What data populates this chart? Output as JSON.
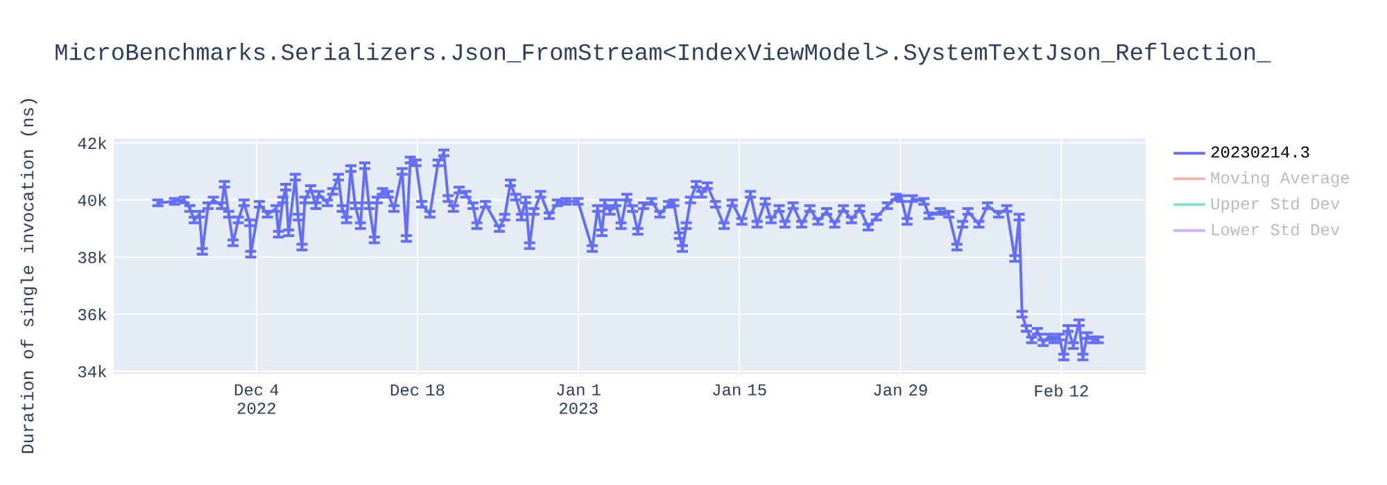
{
  "chart_data": {
    "type": "line",
    "title": "MicroBenchmarks.Serializers.Json_FromStream<IndexViewModel>.SystemTextJson_Reflection_",
    "ylabel": "Duration of single invocation (ns)",
    "xlim": [
      "2022-11-21T14:00",
      "2023-02-19T08:00"
    ],
    "xticks": [
      {
        "value": "2022-12-04",
        "label": "Dec 4 2022"
      },
      {
        "value": "2022-12-18",
        "label": "Dec 18"
      },
      {
        "value": "2023-01-01",
        "label": "Jan 1 2023"
      },
      {
        "value": "2023-01-15",
        "label": "Jan 15"
      },
      {
        "value": "2023-01-29",
        "label": "Jan 29"
      },
      {
        "value": "2023-02-12",
        "label": "Feb 12"
      }
    ],
    "ylim": [
      33900,
      42150
    ],
    "yticks": [
      {
        "value": 34000,
        "label": "34k"
      },
      {
        "value": 36000,
        "label": "36k"
      },
      {
        "value": 38000,
        "label": "38k"
      },
      {
        "value": 40000,
        "label": "40k"
      },
      {
        "value": 42000,
        "label": "42k"
      }
    ],
    "grid": true,
    "legend": "top right",
    "marker": "none",
    "line_style": "solid",
    "series": [
      {
        "name": "20230214.3",
        "color": "#636efa",
        "x": [
          "2022-11-25T10:00",
          "2022-11-26T21:00",
          "2022-11-27T17:00",
          "2022-11-28T05:00",
          "2022-11-28T14:00",
          "2022-11-29T01:00",
          "2022-11-29T07:00",
          "2022-11-29T19:00",
          "2022-11-30T06:00",
          "2022-11-30T23:00",
          "2022-12-01T05:00",
          "2022-12-01T14:00",
          "2022-12-01T23:00",
          "2022-12-02T10:00",
          "2022-12-02T22:00",
          "2022-12-03T10:00",
          "2022-12-03T12:00",
          "2022-12-04T06:00",
          "2022-12-04T23:00",
          "2022-12-05T17:00",
          "2022-12-05T22:00",
          "2022-12-06T07:00",
          "2022-12-06T13:00",
          "2022-12-06T19:00",
          "2022-12-07T09:00",
          "2022-12-07T15:00",
          "2022-12-07T23:00",
          "2022-12-08T05:00",
          "2022-12-08T17:00",
          "2022-12-09T04:00",
          "2022-12-09T10:00",
          "2022-12-10T04:00",
          "2022-12-10T15:00",
          "2022-12-11T03:00",
          "2022-12-11T11:00",
          "2022-12-11T20:00",
          "2022-12-12T05:00",
          "2022-12-12T14:00",
          "2022-12-13T01:00",
          "2022-12-13T10:00",
          "2022-12-13T19:00",
          "2022-12-14T06:00",
          "2022-12-14T12:00",
          "2022-12-14T23:00",
          "2022-12-15T11:00",
          "2022-12-15T23:00",
          "2022-12-16T16:00",
          "2022-12-17T01:00",
          "2022-12-17T09:00",
          "2022-12-17T21:00",
          "2022-12-18T09:00",
          "2022-12-19T02:00",
          "2022-12-19T19:00",
          "2022-12-20T07:00",
          "2022-12-20T16:00",
          "2022-12-21T03:00",
          "2022-12-21T15:00",
          "2022-12-22T05:00",
          "2022-12-22T20:00",
          "2022-12-23T04:00",
          "2022-12-23T22:00",
          "2022-12-25T03:00",
          "2022-12-25T14:00",
          "2022-12-26T02:00",
          "2022-12-26T13:00",
          "2022-12-27T01:00",
          "2022-12-27T10:00",
          "2022-12-27T18:00",
          "2022-12-28T03:00",
          "2022-12-28T17:00",
          "2022-12-29T11:00",
          "2022-12-30T04:00",
          "2022-12-30T22:00",
          "2022-12-31T23:00",
          "2023-01-02T05:00",
          "2023-01-02T16:00",
          "2023-01-03T01:00",
          "2023-01-03T07:00",
          "2023-01-03T18:00",
          "2023-01-04T06:00",
          "2023-01-04T17:00",
          "2023-01-05T05:00",
          "2023-01-05T17:00",
          "2023-01-06T04:00",
          "2023-01-06T16:00",
          "2023-01-07T09:00",
          "2023-01-08T02:00",
          "2023-01-08T20:00",
          "2023-01-09T07:00",
          "2023-01-09T19:00",
          "2023-01-10T01:00",
          "2023-01-10T09:00",
          "2023-01-10T18:00",
          "2023-01-11T06:00",
          "2023-01-11T17:00",
          "2023-01-12T05:00",
          "2023-01-12T22:00",
          "2023-01-13T16:00",
          "2023-01-14T09:00",
          "2023-01-15T05:00",
          "2023-01-15T23:00",
          "2023-01-16T13:00",
          "2023-01-17T06:00",
          "2023-01-17T18:00",
          "2023-01-18T11:00",
          "2023-01-18T23:00",
          "2023-01-19T16:00",
          "2023-01-20T10:00",
          "2023-01-21T03:00",
          "2023-01-21T20:00",
          "2023-01-22T14:00",
          "2023-01-23T07:00",
          "2023-01-24T01:00",
          "2023-01-24T18:00",
          "2023-01-25T11:00",
          "2023-01-26T05:00",
          "2023-01-26T22:00",
          "2023-01-27T21:00",
          "2023-01-28T15:00",
          "2023-01-29T02:00",
          "2023-01-29T14:00",
          "2023-01-30T01:00",
          "2023-01-31T01:00",
          "2023-01-31T12:00",
          "2023-02-01T11:00",
          "2023-02-02T05:00",
          "2023-02-02T22:00",
          "2023-02-03T10:00",
          "2023-02-03T21:00",
          "2023-02-04T20:00",
          "2023-02-05T14:00",
          "2023-02-06T13:00",
          "2023-02-07T06:00",
          "2023-02-07T23:00",
          "2023-02-08T08:00",
          "2023-02-08T14:00",
          "2023-02-08T23:00",
          "2023-02-09T10:00",
          "2023-02-09T22:00",
          "2023-02-10T10:00",
          "2023-02-10T21:00",
          "2023-02-11T09:00",
          "2023-02-11T20:00",
          "2023-02-12T05:00",
          "2023-02-12T14:00",
          "2023-02-13T01:00",
          "2023-02-13T13:00",
          "2023-02-13T21:00",
          "2023-02-14T06:00",
          "2023-02-14T18:00",
          "2023-02-15T05:00"
        ],
        "values": [
          39900,
          39950,
          40000,
          39700,
          39300,
          39500,
          38200,
          39800,
          40000,
          39800,
          40550,
          39500,
          38500,
          39300,
          39900,
          39200,
          38100,
          39850,
          39500,
          39700,
          38800,
          40000,
          40450,
          38850,
          40800,
          39400,
          38350,
          40000,
          40400,
          39800,
          40200,
          39900,
          40300,
          40800,
          39700,
          39300,
          41100,
          39800,
          39100,
          41200,
          39800,
          38600,
          40000,
          40300,
          40200,
          39700,
          41000,
          38650,
          41400,
          41300,
          39850,
          39500,
          41300,
          41650,
          40050,
          39700,
          40350,
          40200,
          39800,
          39100,
          39850,
          39000,
          39400,
          40600,
          40100,
          39400,
          40000,
          38400,
          39600,
          40200,
          39450,
          39900,
          39950,
          39950,
          38300,
          39700,
          38850,
          39900,
          39600,
          39900,
          39100,
          40100,
          39700,
          38900,
          39800,
          39950,
          39500,
          39850,
          39900,
          38750,
          38300,
          39100,
          40000,
          40550,
          40200,
          40500,
          39850,
          39100,
          39900,
          39250,
          40200,
          39150,
          39950,
          39300,
          39700,
          39150,
          39800,
          39150,
          39700,
          39250,
          39600,
          39150,
          39700,
          39300,
          39700,
          39050,
          39400,
          39800,
          40100,
          40050,
          39250,
          40050,
          39950,
          39450,
          39600,
          39500,
          38350,
          39150,
          39600,
          39150,
          39800,
          39500,
          39700,
          37950,
          39400,
          36000,
          35500,
          35100,
          35400,
          35000,
          35200,
          35100,
          35200,
          34500,
          35500,
          34900,
          35700,
          34500,
          35250,
          35100,
          35100
        ],
        "errors": [
          100,
          100,
          100,
          100,
          100,
          100,
          100,
          100,
          100,
          100,
          100,
          100,
          100,
          100,
          100,
          100,
          100,
          100,
          100,
          100,
          100,
          100,
          100,
          100,
          100,
          100,
          100,
          100,
          100,
          100,
          100,
          100,
          100,
          100,
          100,
          100,
          100,
          100,
          100,
          100,
          100,
          100,
          100,
          100,
          100,
          100,
          100,
          100,
          100,
          100,
          100,
          100,
          100,
          100,
          100,
          100,
          100,
          100,
          100,
          100,
          100,
          100,
          100,
          100,
          100,
          100,
          100,
          100,
          100,
          100,
          100,
          100,
          100,
          100,
          100,
          100,
          100,
          100,
          100,
          100,
          100,
          100,
          100,
          100,
          100,
          100,
          100,
          100,
          100,
          100,
          100,
          100,
          100,
          100,
          100,
          100,
          100,
          100,
          100,
          100,
          100,
          100,
          100,
          100,
          100,
          100,
          100,
          100,
          100,
          100,
          100,
          100,
          100,
          100,
          100,
          100,
          100,
          100,
          100,
          100,
          100,
          100,
          100,
          100,
          100,
          100,
          100,
          100,
          100,
          100,
          100,
          100,
          100,
          100,
          100,
          100,
          100,
          100,
          100,
          100,
          100,
          100,
          100,
          100,
          100,
          100,
          100,
          100,
          100,
          100,
          100
        ]
      },
      {
        "name": "Moving Average",
        "color": "#f9b5a8"
      },
      {
        "name": "Upper Std Dev",
        "color": "#80e5cb"
      },
      {
        "name": "Lower Std Dev",
        "color": "#d5b1fc"
      }
    ]
  }
}
